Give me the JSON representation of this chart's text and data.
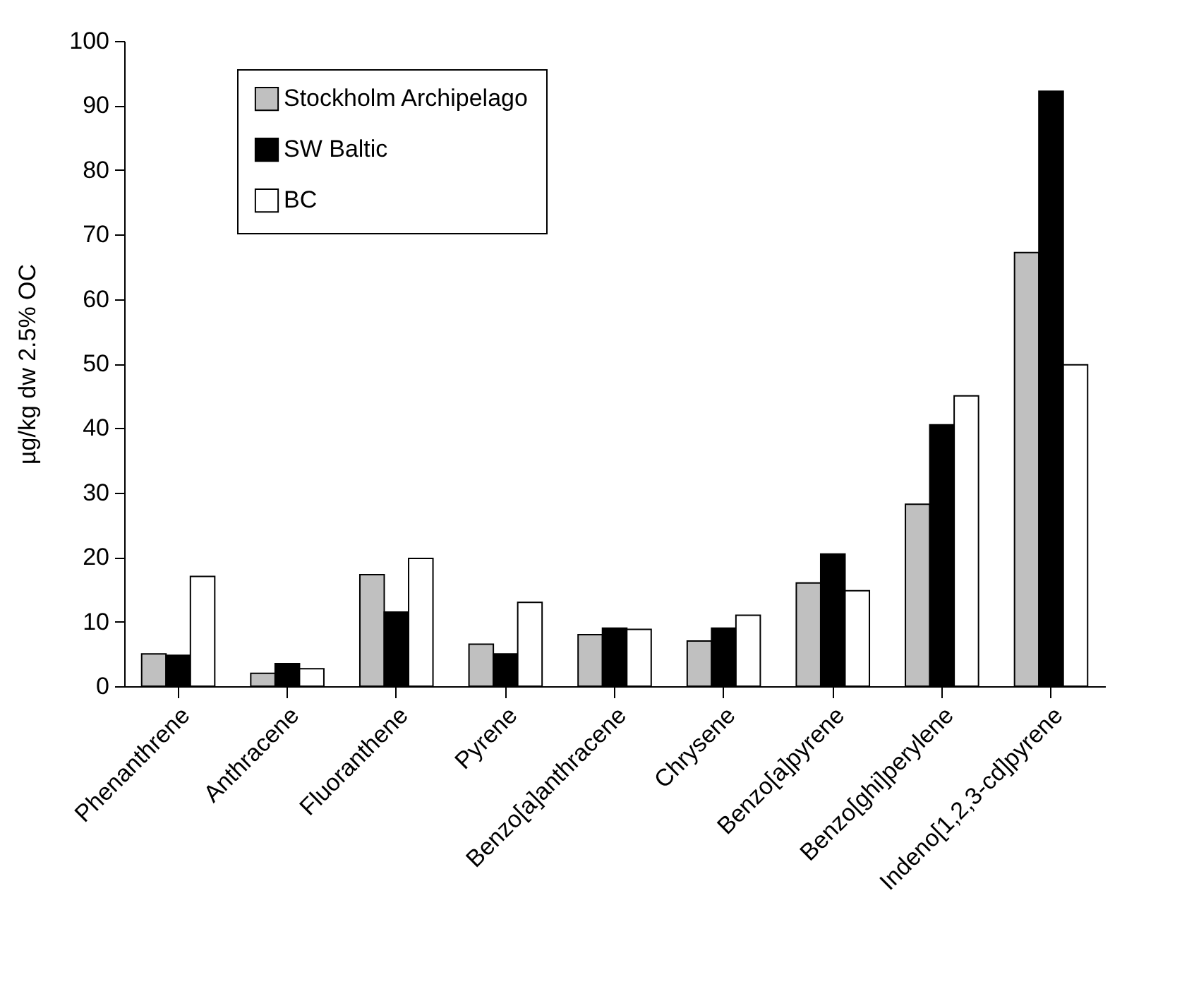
{
  "chart_data": {
    "type": "bar",
    "ylabel": "µg/kg dw 2.5% OC",
    "categories": [
      "Phenanthrene",
      "Anthracene",
      "Fluoranthene",
      "Pyrene",
      "Benzo[a]anthracene",
      "Chrysene",
      "Benzo[a]pyrene",
      "Benzo[ghi]perylene",
      "Indeno[1,2,3-cd]pyrene"
    ],
    "series": [
      {
        "name": "Stockholm Archipelago",
        "color": "#c0c0c0",
        "values": [
          5,
          2,
          17.3,
          6.5,
          8,
          7,
          16,
          28.2,
          67.2
        ]
      },
      {
        "name": "SW Baltic",
        "color": "#000000",
        "values": [
          4.8,
          3.5,
          11.5,
          5,
          9,
          9,
          20.5,
          40.5,
          92.2
        ]
      },
      {
        "name": "BC",
        "color": "#ffffff",
        "values": [
          17,
          2.7,
          19.8,
          13,
          8.8,
          11,
          14.8,
          45,
          49.8
        ]
      }
    ],
    "ylim": [
      0,
      100
    ],
    "yticks": [
      0,
      10,
      20,
      30,
      40,
      50,
      60,
      70,
      80,
      90,
      100
    ],
    "legend": "top left",
    "grid": false
  }
}
